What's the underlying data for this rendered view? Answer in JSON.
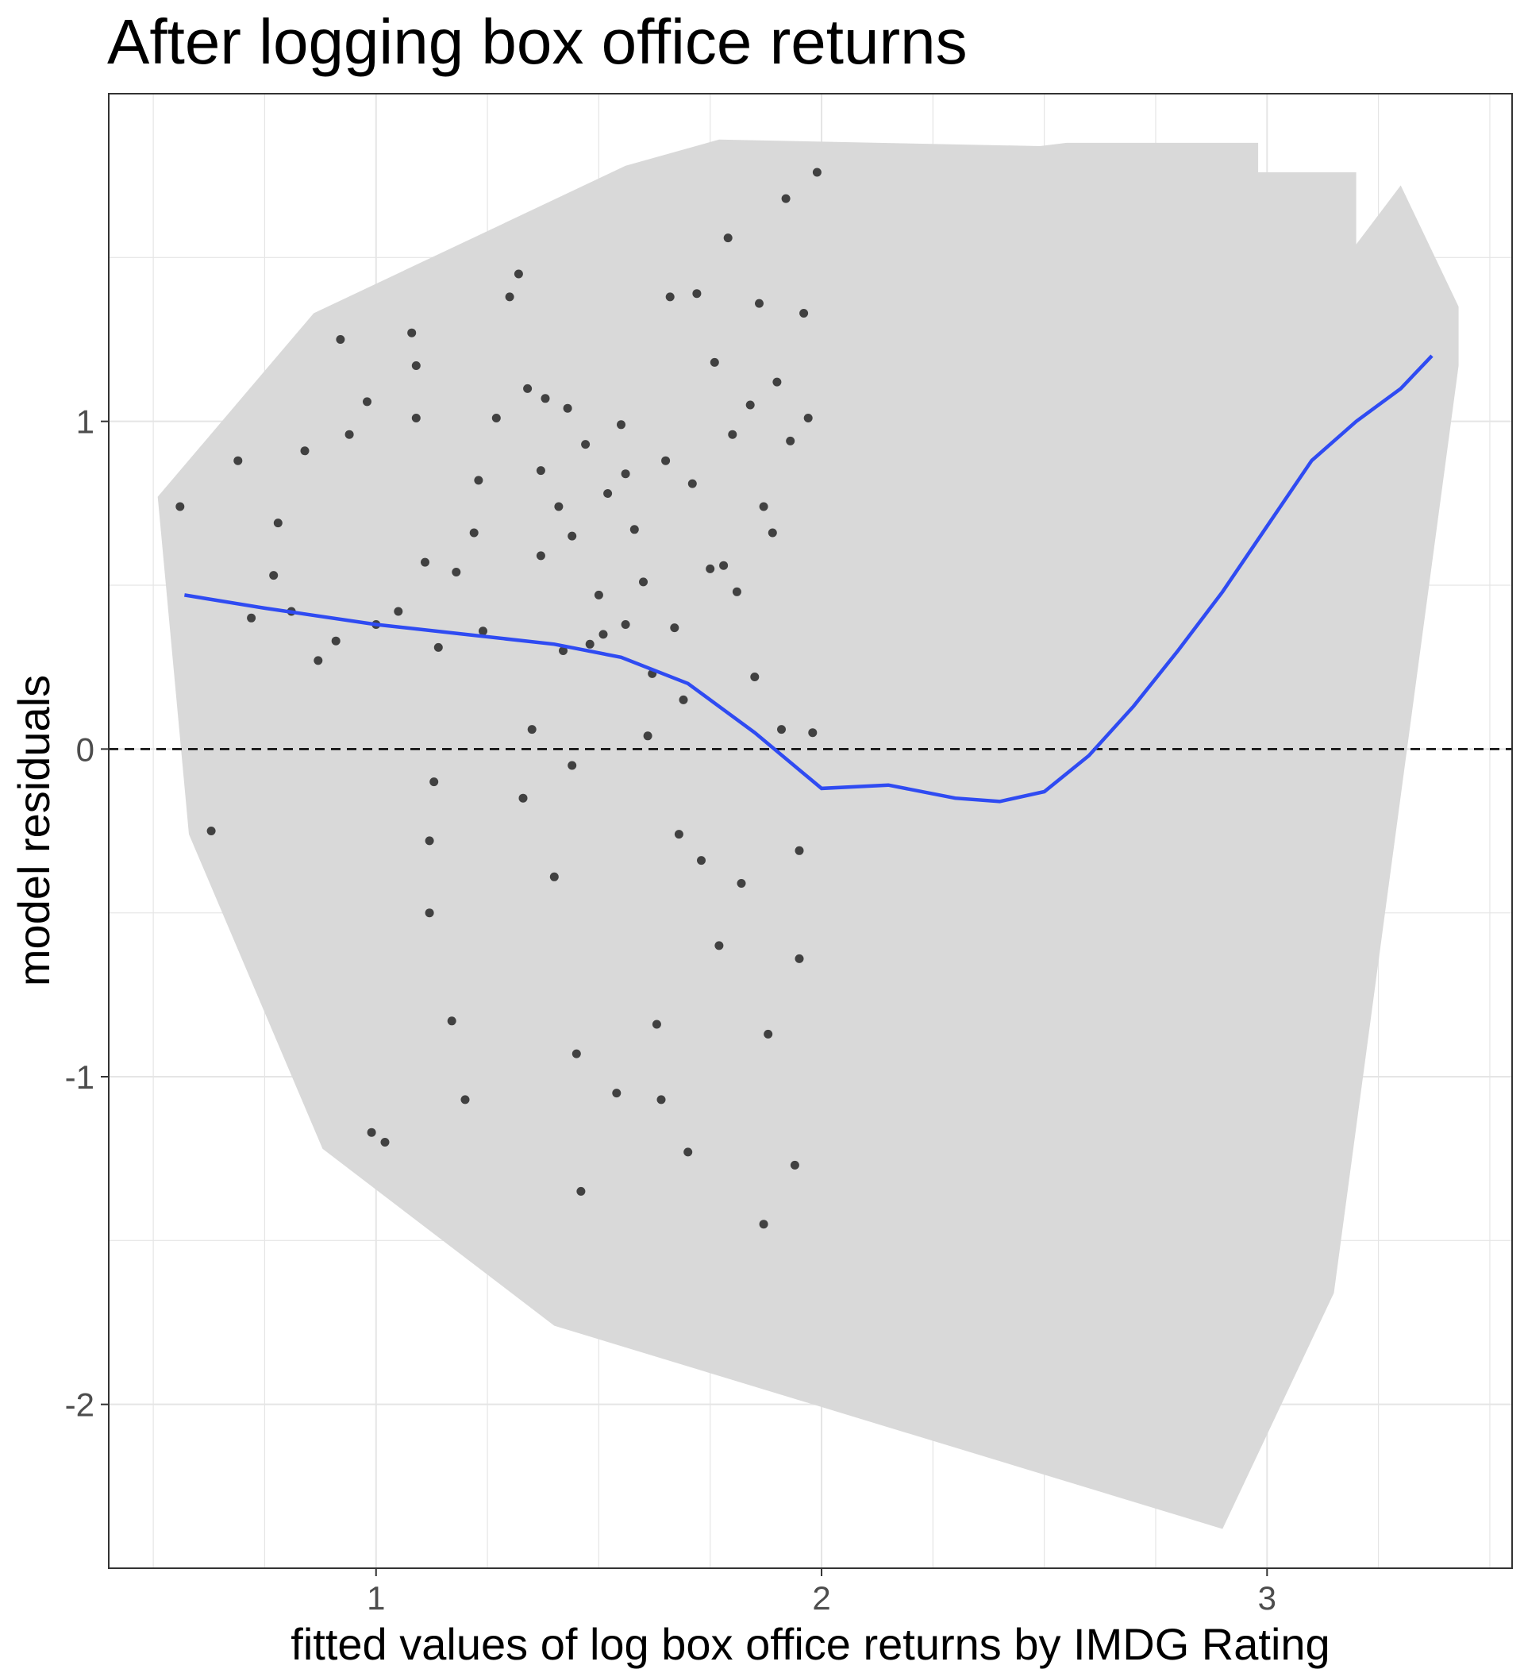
{
  "chart_data": {
    "type": "scatter",
    "title": "After logging box office returns",
    "xlabel": "fitted values of log box office returns by IMDG Rating",
    "ylabel": "model residuals",
    "xlim": [
      0.4,
      3.55
    ],
    "ylim": [
      -2.5,
      2.0
    ],
    "x_ticks": [
      1,
      2,
      3
    ],
    "x_tick_labels": [
      "1",
      "2",
      "3"
    ],
    "y_ticks": [
      -2,
      -1,
      0,
      1
    ],
    "y_tick_labels": [
      "-2",
      "-1",
      "0",
      "1"
    ],
    "grid": true,
    "legend": "none",
    "reference_line": {
      "y": 0,
      "style": "dashed"
    },
    "hull": [
      [
        0.51,
        0.77
      ],
      [
        0.58,
        -0.26
      ],
      [
        0.88,
        -1.22
      ],
      [
        1.4,
        -1.76
      ],
      [
        2.9,
        -2.38
      ],
      [
        3.15,
        -1.66
      ],
      [
        3.43,
        1.17
      ],
      [
        3.43,
        1.35
      ],
      [
        3.3,
        1.72
      ],
      [
        3.2,
        1.54
      ],
      [
        3.2,
        1.76
      ],
      [
        2.98,
        1.76
      ],
      [
        2.98,
        1.85
      ],
      [
        2.55,
        1.85
      ],
      [
        2.49,
        1.84
      ],
      [
        1.77,
        1.86
      ],
      [
        1.56,
        1.78
      ],
      [
        0.86,
        1.33
      ]
    ],
    "smooth": {
      "name": "loess",
      "x": [
        0.57,
        0.75,
        1.0,
        1.2,
        1.4,
        1.55,
        1.7,
        1.85,
        2.0,
        2.15,
        2.3,
        2.4,
        2.5,
        2.6,
        2.7,
        2.8,
        2.9,
        3.0,
        3.1,
        3.2,
        3.3,
        3.37
      ],
      "y": [
        0.47,
        0.43,
        0.38,
        0.35,
        0.32,
        0.28,
        0.2,
        0.05,
        -0.12,
        -0.11,
        -0.15,
        -0.16,
        -0.13,
        -0.02,
        0.13,
        0.3,
        0.48,
        0.68,
        0.88,
        1.0,
        1.1,
        1.2
      ]
    },
    "points": [
      [
        0.56,
        0.74
      ],
      [
        0.63,
        -0.25
      ],
      [
        0.69,
        0.88
      ],
      [
        0.72,
        0.4
      ],
      [
        0.77,
        0.53
      ],
      [
        0.78,
        0.69
      ],
      [
        0.81,
        0.42
      ],
      [
        0.84,
        0.91
      ],
      [
        0.87,
        0.27
      ],
      [
        0.91,
        0.33
      ],
      [
        0.92,
        1.25
      ],
      [
        0.94,
        0.96
      ],
      [
        0.98,
        1.06
      ],
      [
        0.99,
        -1.17
      ],
      [
        1.0,
        0.38
      ],
      [
        1.02,
        -1.2
      ],
      [
        1.05,
        0.42
      ],
      [
        1.08,
        1.27
      ],
      [
        1.09,
        1.17
      ],
      [
        1.09,
        1.01
      ],
      [
        1.11,
        0.57
      ],
      [
        1.12,
        -0.28
      ],
      [
        1.12,
        -0.5
      ],
      [
        1.13,
        -0.1
      ],
      [
        1.14,
        0.31
      ],
      [
        1.17,
        -0.83
      ],
      [
        1.18,
        0.54
      ],
      [
        1.2,
        -1.07
      ],
      [
        1.22,
        0.66
      ],
      [
        1.23,
        0.82
      ],
      [
        1.24,
        0.36
      ],
      [
        1.27,
        1.01
      ],
      [
        1.3,
        1.38
      ],
      [
        1.32,
        1.45
      ],
      [
        1.33,
        -0.15
      ],
      [
        1.34,
        1.1
      ],
      [
        1.35,
        0.06
      ],
      [
        1.37,
        0.59
      ],
      [
        1.37,
        0.85
      ],
      [
        1.38,
        1.07
      ],
      [
        1.4,
        -0.39
      ],
      [
        1.41,
        0.74
      ],
      [
        1.42,
        0.3
      ],
      [
        1.43,
        1.04
      ],
      [
        1.44,
        -0.05
      ],
      [
        1.44,
        0.65
      ],
      [
        1.45,
        -0.93
      ],
      [
        1.46,
        -1.35
      ],
      [
        1.47,
        0.93
      ],
      [
        1.48,
        0.32
      ],
      [
        1.5,
        0.47
      ],
      [
        1.51,
        0.35
      ],
      [
        1.52,
        0.78
      ],
      [
        1.54,
        -1.05
      ],
      [
        1.55,
        0.99
      ],
      [
        1.56,
        0.84
      ],
      [
        1.56,
        0.38
      ],
      [
        1.58,
        0.67
      ],
      [
        1.6,
        0.51
      ],
      [
        1.61,
        0.04
      ],
      [
        1.62,
        0.23
      ],
      [
        1.63,
        -0.84
      ],
      [
        1.64,
        -1.07
      ],
      [
        1.65,
        0.88
      ],
      [
        1.66,
        1.38
      ],
      [
        1.67,
        0.37
      ],
      [
        1.68,
        -0.26
      ],
      [
        1.69,
        0.15
      ],
      [
        1.7,
        -1.23
      ],
      [
        1.71,
        0.81
      ],
      [
        1.72,
        1.39
      ],
      [
        1.73,
        -0.34
      ],
      [
        1.75,
        0.55
      ],
      [
        1.76,
        1.18
      ],
      [
        1.77,
        -0.6
      ],
      [
        1.78,
        0.56
      ],
      [
        1.79,
        1.56
      ],
      [
        1.8,
        0.96
      ],
      [
        1.81,
        0.48
      ],
      [
        1.82,
        -0.41
      ],
      [
        1.84,
        1.05
      ],
      [
        1.85,
        0.22
      ],
      [
        1.86,
        1.36
      ],
      [
        1.87,
        0.74
      ],
      [
        1.87,
        -1.45
      ],
      [
        1.88,
        -0.87
      ],
      [
        1.89,
        0.66
      ],
      [
        1.9,
        1.12
      ],
      [
        1.91,
        0.06
      ],
      [
        1.92,
        1.68
      ],
      [
        1.93,
        0.94
      ],
      [
        1.94,
        -1.27
      ],
      [
        1.95,
        -0.31
      ],
      [
        1.95,
        -0.64
      ],
      [
        1.96,
        1.33
      ],
      [
        1.97,
        1.01
      ],
      [
        1.98,
        0.05
      ],
      [
        1.99,
        1.76
      ]
    ]
  }
}
